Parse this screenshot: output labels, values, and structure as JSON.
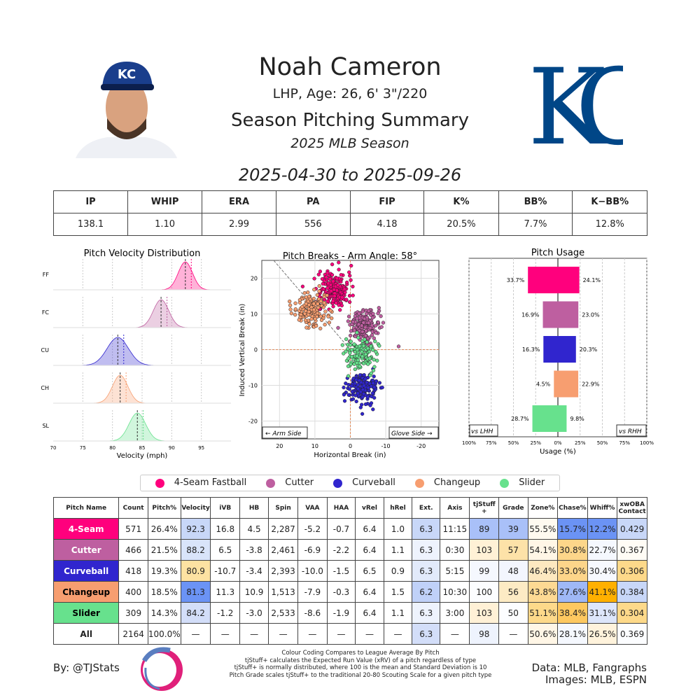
{
  "header": {
    "name": "Noah Cameron",
    "bio": "LHP, Age: 26, 6' 3\"/220",
    "title": "Season Pitching Summary",
    "season": "2025 MLB Season",
    "dates": "2025-04-30 to 2025-09-26",
    "team_logo_text": "KC",
    "team_color": "#004687"
  },
  "stats": {
    "headers": [
      "IP",
      "WHIP",
      "ERA",
      "PA",
      "FIP",
      "K%",
      "BB%",
      "K−BB%"
    ],
    "values": [
      "138.1",
      "1.10",
      "2.99",
      "556",
      "4.18",
      "20.5%",
      "7.7%",
      "12.8%"
    ]
  },
  "pitches": [
    {
      "name": "4-Seam Fastball",
      "short": "4-Seam",
      "code": "FF",
      "color": "#FF007D"
    },
    {
      "name": "Cutter",
      "short": "Cutter",
      "code": "FC",
      "color": "#BE5FA0"
    },
    {
      "name": "Curveball",
      "short": "Curveball",
      "code": "CU",
      "color": "#3025CE"
    },
    {
      "name": "Changeup",
      "short": "Changeup",
      "code": "CH",
      "color": "#F79E70"
    },
    {
      "name": "Slider",
      "short": "Slider",
      "code": "SL",
      "color": "#67E18D"
    }
  ],
  "chart_data": [
    {
      "type": "area",
      "title": "Pitch Velocity Distribution",
      "xlabel": "Velocity (mph)",
      "xlim": [
        70,
        100
      ],
      "xticks": [
        "70",
        "75",
        "80",
        "85",
        "90",
        "95"
      ],
      "series": [
        {
          "name": "FF",
          "mean": 92.3,
          "sd": 1.2
        },
        {
          "name": "FC",
          "mean": 88.2,
          "sd": 1.3
        },
        {
          "name": "CU",
          "mean": 80.9,
          "sd": 1.8
        },
        {
          "name": "CH",
          "mean": 81.3,
          "sd": 1.3
        },
        {
          "name": "SL",
          "mean": 84.2,
          "sd": 1.4
        }
      ],
      "grid": true
    },
    {
      "type": "scatter",
      "title": "Pitch Breaks - Arm Angle: 58°",
      "xlabel": "Horizontal Break (in)",
      "ylabel": "Induced Vertical Break (in)",
      "xlim": [
        25,
        -25
      ],
      "ylim": [
        -25,
        25
      ],
      "xticks": [
        "20",
        "10",
        "0",
        "-10",
        "-20"
      ],
      "yticks": [
        "20",
        "10",
        "0",
        "-10",
        "-20"
      ],
      "annotations": [
        "← Arm Side",
        "Glove Side →"
      ],
      "series": [
        {
          "name": "FF",
          "x": 4.5,
          "y": 16.8
        },
        {
          "name": "FC",
          "x": -3.8,
          "y": 6.5
        },
        {
          "name": "CU",
          "x": -3.4,
          "y": -10.7
        },
        {
          "name": "CH",
          "x": 10.9,
          "y": 11.3
        },
        {
          "name": "SL",
          "x": -3.0,
          "y": -1.2
        }
      ],
      "grid": true
    },
    {
      "type": "bar",
      "title": "Pitch Usage",
      "xlabel": "Usage (%)",
      "xticks": [
        "100%",
        "75%",
        "50%",
        "25%",
        "0%",
        "25%",
        "50%",
        "75%",
        "100%"
      ],
      "categories": [
        "FF",
        "FC",
        "CU",
        "CH",
        "SL"
      ],
      "series": [
        {
          "name": "vs LHH",
          "values": [
            33.7,
            16.9,
            16.3,
            4.5,
            28.7
          ]
        },
        {
          "name": "vs RHH",
          "values": [
            24.1,
            23.0,
            20.3,
            22.9,
            9.8
          ]
        }
      ],
      "grid": true
    }
  ],
  "table": {
    "headers": [
      "Pitch Name",
      "Count",
      "Pitch%",
      "Velocity",
      "iVB",
      "HB",
      "Spin",
      "VAA",
      "HAA",
      "vRel",
      "hRel",
      "Ext.",
      "Axis",
      "tjStuff +",
      "Grade",
      "Zone%",
      "Chase%",
      "Whiff%",
      "xwOBA Contact"
    ],
    "rows": [
      [
        "4-Seam",
        "571",
        "26.4%",
        "92.3",
        "16.8",
        "4.5",
        "2,287",
        "-5.2",
        "-0.7",
        "6.4",
        "1.0",
        "6.3",
        "11:15",
        "89",
        "39",
        "55.5%",
        "15.7%",
        "12.2%",
        "0.429"
      ],
      [
        "Cutter",
        "466",
        "21.5%",
        "88.2",
        "6.5",
        "-3.8",
        "2,461",
        "-6.9",
        "-2.2",
        "6.4",
        "1.1",
        "6.3",
        "0:30",
        "103",
        "57",
        "54.1%",
        "30.8%",
        "22.7%",
        "0.367"
      ],
      [
        "Curveball",
        "418",
        "19.3%",
        "80.9",
        "-10.7",
        "-3.4",
        "2,393",
        "-10.0",
        "-1.5",
        "6.5",
        "0.9",
        "6.3",
        "5:15",
        "99",
        "48",
        "46.4%",
        "33.0%",
        "30.4%",
        "0.306"
      ],
      [
        "Changeup",
        "400",
        "18.5%",
        "81.3",
        "11.3",
        "10.9",
        "1,513",
        "-7.9",
        "-0.3",
        "6.4",
        "1.5",
        "6.2",
        "10:30",
        "100",
        "56",
        "43.8%",
        "27.6%",
        "41.1%",
        "0.384"
      ],
      [
        "Slider",
        "309",
        "14.3%",
        "84.2",
        "-1.2",
        "-3.0",
        "2,533",
        "-8.6",
        "-1.9",
        "6.4",
        "1.1",
        "6.3",
        "3:00",
        "103",
        "50",
        "51.1%",
        "38.4%",
        "31.1%",
        "0.304"
      ],
      [
        "All",
        "2164",
        "100.0%",
        "—",
        "—",
        "—",
        "—",
        "—",
        "—",
        "—",
        "—",
        "6.3",
        "—",
        "98",
        "—",
        "50.6%",
        "28.1%",
        "26.5%",
        "0.369"
      ]
    ],
    "cell_colors": [
      [
        null,
        null,
        null,
        "#c8d7f8",
        null,
        null,
        null,
        null,
        null,
        null,
        null,
        "#c8d7f8",
        null,
        "#a9c0f8",
        "#a9c0f8",
        "#fffaf0",
        "#6b93f5",
        "#6b93f5",
        "#c8d7f8"
      ],
      [
        null,
        null,
        null,
        "#d9e4fa",
        null,
        null,
        null,
        null,
        null,
        null,
        null,
        "#eef3fd",
        null,
        "#fff1d6",
        "#fde2a8",
        "#fff6e6",
        "#fdd68a",
        "#f5f8fe",
        "#fffcf5"
      ],
      [
        null,
        null,
        null,
        "#fde2a2",
        null,
        null,
        null,
        null,
        null,
        null,
        null,
        "#e2eafb",
        null,
        "#f5f8fe",
        "#f3f6fe",
        "#fde8c0",
        "#fdd58a",
        "#f7f9fe",
        "#fdd98a"
      ],
      [
        null,
        null,
        null,
        "#6b93f5",
        null,
        null,
        null,
        null,
        null,
        null,
        null,
        "#c0d1f8",
        null,
        "#fcfdff",
        "#fdebc4",
        "#fdd993",
        "#9fb8f6",
        "#ffb000",
        "#c8d7f8"
      ],
      [
        null,
        null,
        null,
        "#d3def9",
        null,
        null,
        null,
        null,
        null,
        null,
        null,
        "#eef3fd",
        null,
        "#fff1d6",
        "#fcfdff",
        "#fdd98a",
        "#fdc860",
        "#dde6fa",
        "#fdd98a"
      ],
      [
        null,
        null,
        null,
        null,
        null,
        null,
        null,
        null,
        null,
        null,
        null,
        "#d3def9",
        null,
        "#eef3fd",
        null,
        "#fff6e6",
        "#f5f8fe",
        "#fff3dc",
        "#fcfdff"
      ]
    ]
  },
  "footer": {
    "by": "By: @TJStats",
    "notes": [
      "Colour Coding Compares to League Average By Pitch",
      "tjStuff+ calculates the Expected Run Value (xRV) of a pitch regardless of type",
      "tjStuff+ is normally distributed, where 100 is the mean and Standard Deviation is 10",
      "Pitch Grade scales tjStuff+ to the traditional 20-80 Scouting Scale for a given pitch type"
    ],
    "data_source": "Data: MLB, Fangraphs",
    "images_source": "Images: MLB, ESPN"
  }
}
